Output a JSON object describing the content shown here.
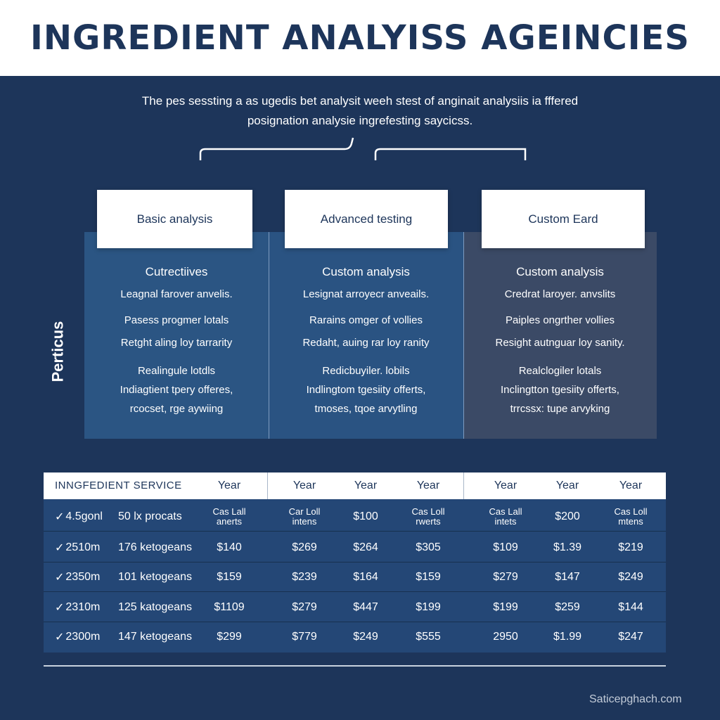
{
  "header": {
    "title": "INGREDIENT ANALYISS AGEINCIES"
  },
  "subtitle": {
    "line1": "The pes sessting a as ugedis bet analysit weeh stest of anginait analysiis ia fffered",
    "line2": "posignation analysie ingrefesting saycicss."
  },
  "side_label": "Perticus",
  "plans": [
    {
      "card": "Basic analysis",
      "heading": "Cutrectiives",
      "lines": [
        "Leagnal farover anvelis.",
        "Pasess progmer lotals",
        "Retght aling loy tarrarity",
        "Realingule lotdls",
        "Indiagtient tpery offeres,",
        "rcocset, rge aywiing"
      ]
    },
    {
      "card": "Advanced testing",
      "heading": "Custom analysis",
      "lines": [
        "Lesignat arroyecr anveails.",
        "Rarains omger of vollies",
        "Redaht, auing rar loy ranity",
        "Redicbuyiler. lobils",
        "Indlingtom tgesiity offerts,",
        "tmoses, tqoe arvytling"
      ]
    },
    {
      "card": "Custom Eard",
      "heading": "Custom analysis",
      "lines": [
        "Credrat laroyer. anvslits",
        "Paiples ongrther vollies",
        "Resight autnguar loy sanity.",
        "Realclogiler lotals",
        "Inclingtton tgesiity offerts,",
        "trrcssx: tupe arvyking"
      ]
    }
  ],
  "table": {
    "header_first": "INNGFEDIENT SERVICE",
    "header_years": [
      "Year",
      "Year",
      "Year",
      "Year",
      "Year",
      "Year",
      "Year"
    ],
    "rows": [
      {
        "check": "✓",
        "c0": "4.5gonl",
        "c1": "50 lx procats",
        "vals": [
          "Cas Lall\nanerts",
          "Car Loll\nintens",
          "$100",
          "Cas Loll\nrwerts",
          "Cas Lall\nintets",
          "$200",
          "Cas Loll\nmtens"
        ]
      },
      {
        "check": "✓",
        "c0": "2510m",
        "c1": "176 ketogeans",
        "vals": [
          "$140",
          "$269",
          "$264",
          "$305",
          "$109",
          "$1.39",
          "$219"
        ]
      },
      {
        "check": "✓",
        "c0": "2350m",
        "c1": "101 ketogeans",
        "vals": [
          "$159",
          "$239",
          "$164",
          "$159",
          "$279",
          "$147",
          "$249"
        ]
      },
      {
        "check": "✓",
        "c0": "2310m",
        "c1": "125 katogeans",
        "vals": [
          "$1109",
          "$279",
          "$447",
          "$199",
          "$199",
          "$259",
          "$144"
        ]
      },
      {
        "check": "✓",
        "c0": "2300m",
        "c1": "147 ketogeans",
        "vals": [
          "$299",
          "$779",
          "$249",
          "$555",
          "2950",
          "$1.99",
          "$247"
        ]
      }
    ]
  },
  "watermark": "Saticepghach.com",
  "colors": {
    "background": "#1d355a",
    "header_bg": "#ffffff",
    "title": "#1d355a",
    "accent_panel": "#2b5583"
  }
}
